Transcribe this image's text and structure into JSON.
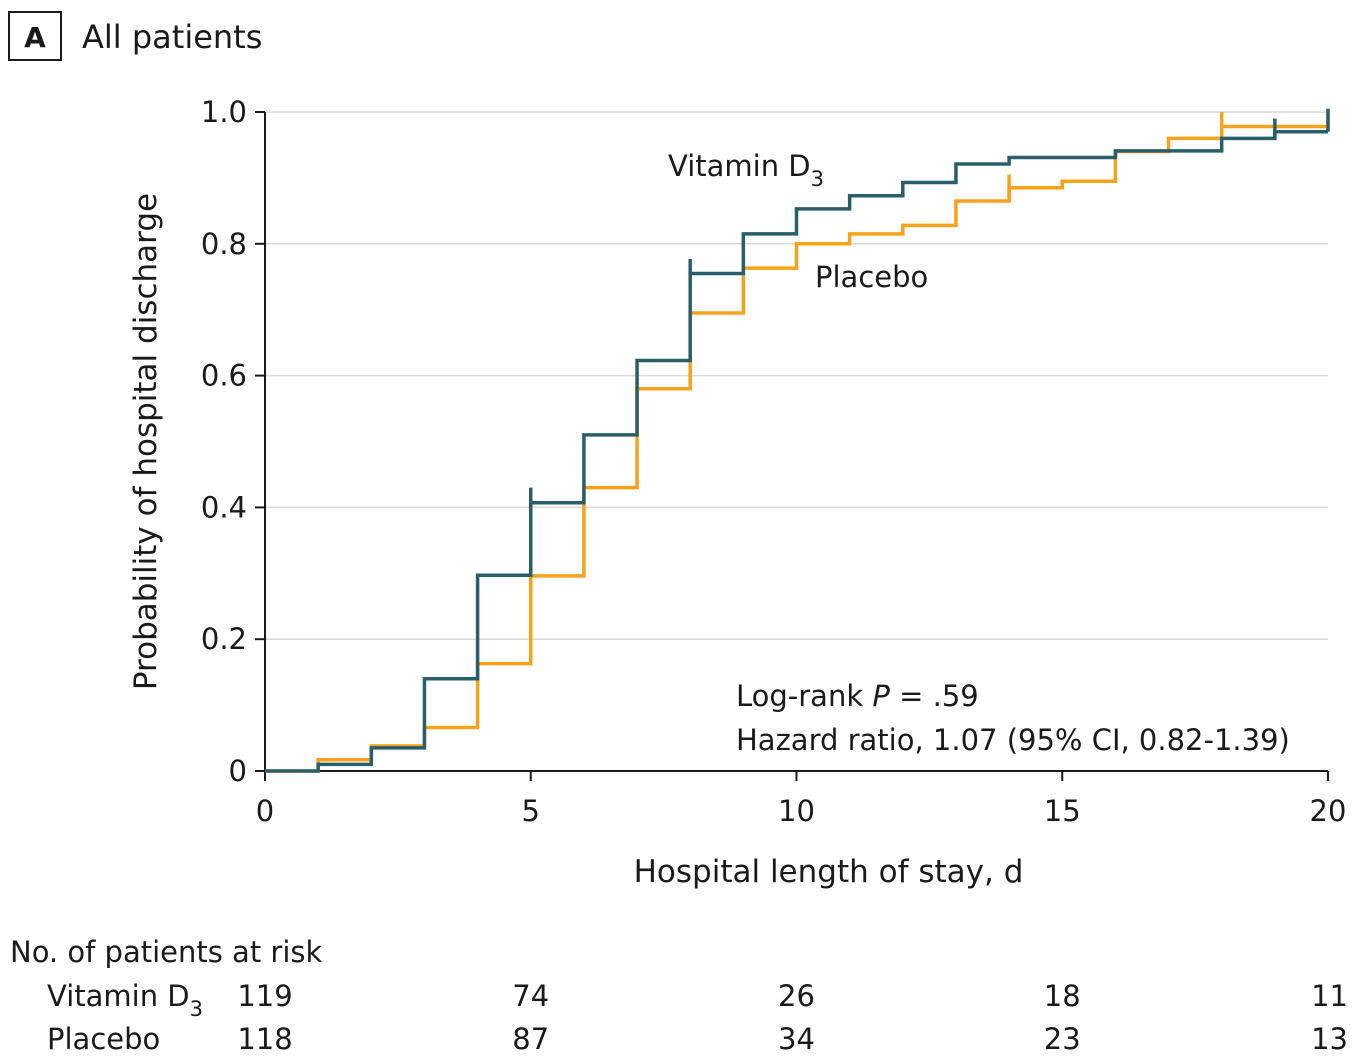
{
  "panel": {
    "letter": "A",
    "title": "All patients"
  },
  "chart_data": {
    "type": "line",
    "step": true,
    "xlabel": "Hospital length of stay, d",
    "ylabel": "Probability of hospital discharge",
    "xlim": [
      0,
      20
    ],
    "ylim": [
      0,
      1.0
    ],
    "x_ticks": [
      0,
      5,
      10,
      15,
      20
    ],
    "x_tick_labels": [
      "0",
      "5",
      "10",
      "15",
      "20"
    ],
    "y_ticks": [
      0,
      0.2,
      0.4,
      0.6,
      0.8,
      1.0
    ],
    "y_tick_labels": [
      "0",
      "0.2",
      "0.4",
      "0.6",
      "0.8",
      "1.0"
    ],
    "grid": {
      "horizontal": true,
      "vertical": false
    },
    "series": [
      {
        "name": "Vitamin D3",
        "label_main": "Vitamin D",
        "label_sub": "3",
        "color": "#2a5e6b",
        "steps": [
          [
            0,
            0
          ],
          [
            1,
            0.01
          ],
          [
            2,
            0.035
          ],
          [
            3,
            0.14
          ],
          [
            4,
            0.297
          ],
          [
            5,
            0.407
          ],
          [
            6,
            0.51
          ],
          [
            7,
            0.623
          ],
          [
            8,
            0.755
          ],
          [
            9,
            0.815
          ],
          [
            10,
            0.853
          ],
          [
            11,
            0.873
          ],
          [
            12,
            0.893
          ],
          [
            13,
            0.921
          ],
          [
            14,
            0.931
          ],
          [
            16,
            0.941
          ],
          [
            18,
            0.96
          ],
          [
            19,
            0.97
          ],
          [
            20,
            0.97
          ]
        ],
        "censor_marks": [
          [
            5,
            0.407,
            0.43
          ],
          [
            8,
            0.755,
            0.777
          ],
          [
            19,
            0.96,
            0.99
          ],
          [
            20,
            0.97,
            1.005
          ]
        ]
      },
      {
        "name": "Placebo",
        "label_main": "Placebo",
        "label_sub": "",
        "color": "#f7a21b",
        "steps": [
          [
            0,
            0
          ],
          [
            1,
            0.017
          ],
          [
            2,
            0.038
          ],
          [
            3,
            0.066
          ],
          [
            4,
            0.163
          ],
          [
            5,
            0.296
          ],
          [
            6,
            0.43
          ],
          [
            7,
            0.58
          ],
          [
            8,
            0.695
          ],
          [
            9,
            0.763
          ],
          [
            10,
            0.8
          ],
          [
            11,
            0.815
          ],
          [
            12,
            0.828
          ],
          [
            13,
            0.865
          ],
          [
            14,
            0.885
          ],
          [
            15,
            0.895
          ],
          [
            16,
            0.94
          ],
          [
            17,
            0.96
          ],
          [
            18,
            0.978
          ],
          [
            20,
            0.978
          ]
        ],
        "censor_marks": [
          [
            14,
            0.865,
            0.905
          ],
          [
            18,
            0.978,
            1.0
          ],
          [
            20,
            0.978,
            0.995
          ]
        ]
      }
    ],
    "annotations": {
      "logrank_prefix": "Log-rank ",
      "logrank_p": "P",
      "logrank_value": " = .59",
      "hazard_ratio": "Hazard ratio, 1.07 (95% CI, 0.82-1.39)"
    },
    "risk_table": {
      "title": "No. of patients at risk",
      "times": [
        0,
        5,
        10,
        15,
        20
      ],
      "rows": [
        {
          "label_main": "Vitamin D",
          "label_sub": "3",
          "values": [
            "119",
            "74",
            "26",
            "18",
            "11"
          ]
        },
        {
          "label_main": "Placebo",
          "label_sub": "",
          "values": [
            "118",
            "87",
            "34",
            "23",
            "13"
          ]
        }
      ]
    }
  }
}
